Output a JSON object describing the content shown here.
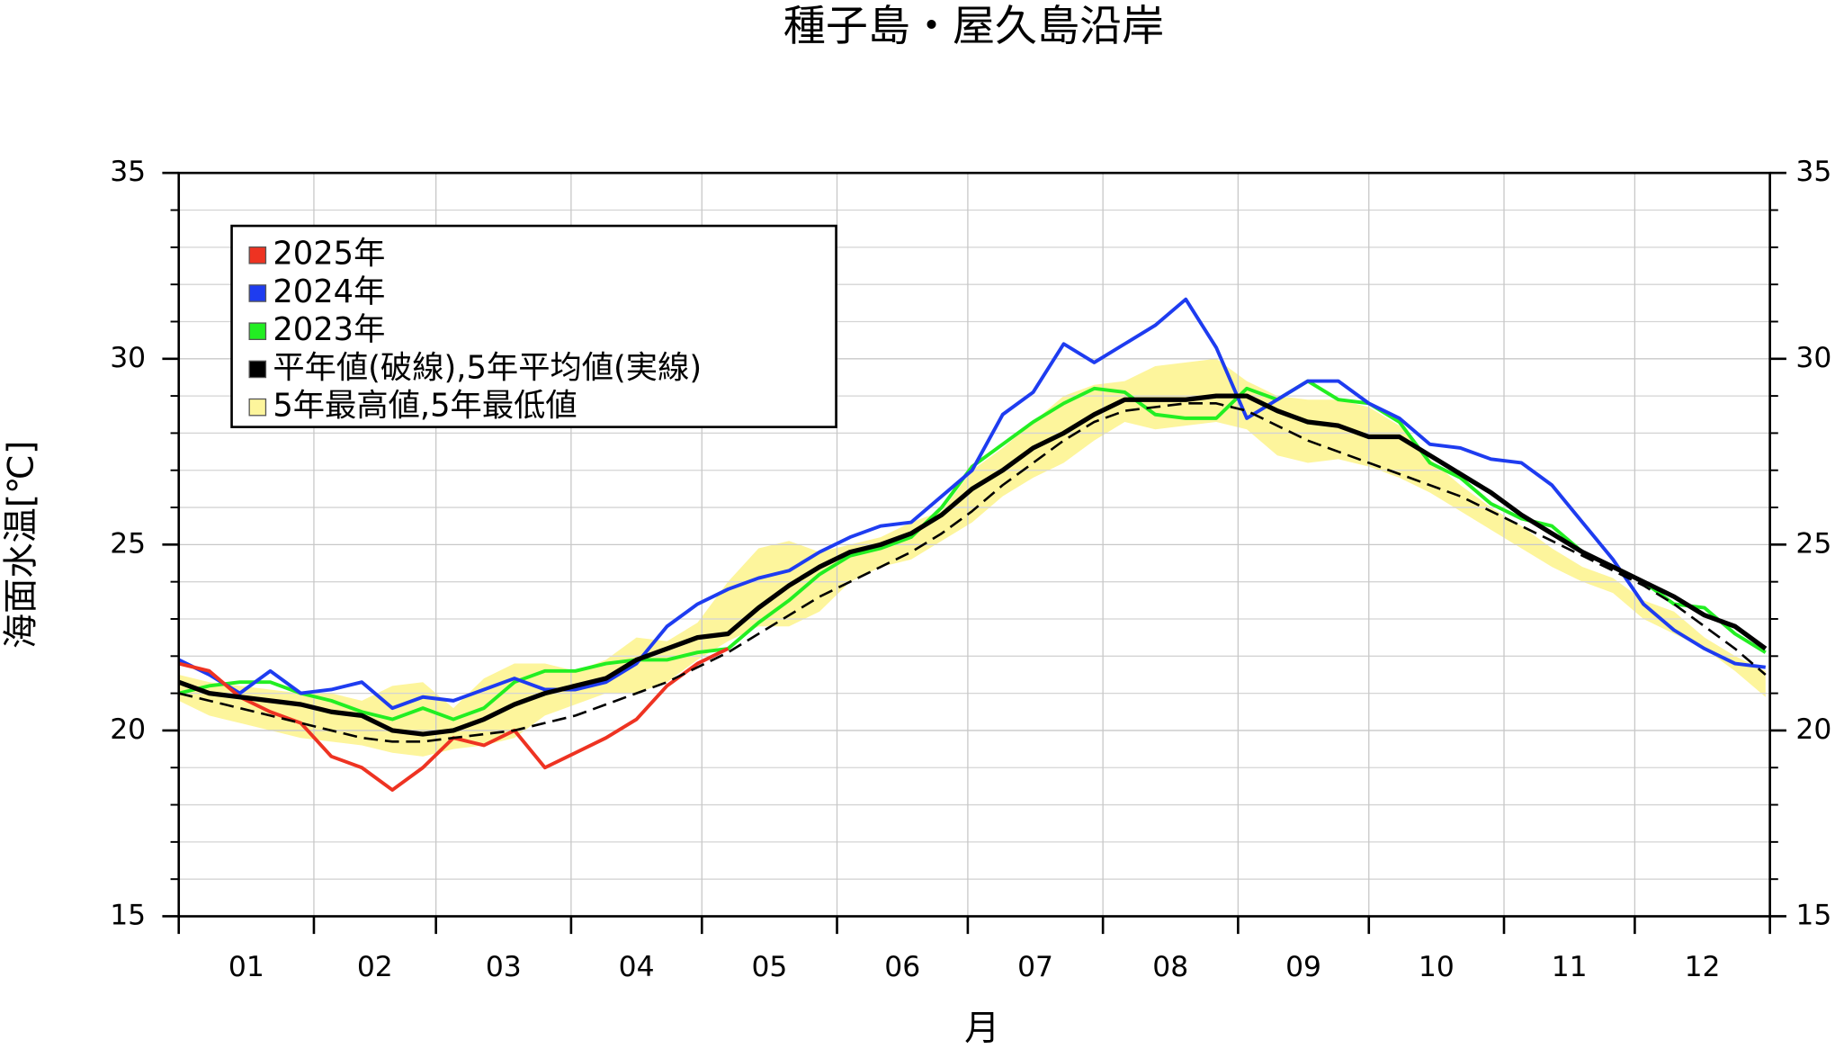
{
  "chart_data": {
    "type": "line",
    "title": "種子島・屋久島沿岸",
    "xlabel": "月",
    "ylabel": "海面水温[℃]",
    "categories": [
      "01",
      "02",
      "03",
      "04",
      "05",
      "06",
      "07",
      "08",
      "09",
      "10",
      "11",
      "12"
    ],
    "xlim": [
      1,
      366
    ],
    "xticks": [
      1,
      32,
      60,
      91,
      121,
      152,
      182,
      213,
      244,
      274,
      305,
      335,
      366
    ],
    "ylim": [
      15,
      35
    ],
    "yticks": [
      15,
      20,
      25,
      30,
      35
    ],
    "yminorticks": [
      16,
      17,
      18,
      19,
      21,
      22,
      23,
      24,
      26,
      27,
      28,
      29,
      31,
      32,
      33,
      34
    ],
    "grid": true,
    "x": [
      1,
      8,
      15,
      22,
      29,
      36,
      43,
      50,
      57,
      64,
      71,
      78,
      85,
      92,
      99,
      106,
      113,
      120,
      127,
      134,
      141,
      148,
      155,
      162,
      169,
      176,
      183,
      190,
      197,
      204,
      211,
      218,
      225,
      232,
      239,
      246,
      253,
      260,
      267,
      274,
      281,
      288,
      295,
      302,
      309,
      316,
      323,
      330,
      337,
      344,
      351,
      358,
      365
    ],
    "band": {
      "name": "5年最高値,5年最低値",
      "color": "#fdf59c",
      "upper": [
        21.5,
        21.3,
        21.2,
        21.1,
        21.0,
        21.0,
        20.8,
        21.2,
        21.3,
        20.6,
        21.4,
        21.8,
        21.8,
        21.6,
        21.9,
        22.5,
        22.4,
        22.9,
        24.0,
        24.9,
        25.1,
        24.8,
        25.0,
        25.2,
        25.6,
        25.9,
        27.0,
        27.6,
        28.3,
        29.0,
        29.3,
        29.4,
        29.8,
        29.9,
        30.0,
        29.4,
        29.0,
        28.9,
        28.9,
        28.7,
        28.2,
        27.3,
        26.6,
        26.0,
        25.5,
        24.9,
        24.4,
        24.1,
        23.5,
        23.2,
        22.5,
        22.0,
        21.6
      ],
      "lower": [
        20.8,
        20.4,
        20.2,
        20.0,
        19.8,
        19.7,
        19.6,
        19.4,
        19.3,
        19.5,
        19.6,
        19.8,
        20.4,
        20.7,
        21.0,
        21.0,
        21.3,
        21.9,
        22.4,
        22.8,
        22.8,
        23.2,
        24.0,
        24.4,
        24.6,
        25.1,
        25.6,
        26.3,
        26.8,
        27.2,
        27.8,
        28.3,
        28.1,
        28.2,
        28.3,
        28.1,
        27.4,
        27.2,
        27.3,
        27.1,
        26.8,
        26.4,
        25.9,
        25.4,
        24.9,
        24.4,
        24.0,
        23.7,
        23.0,
        22.6,
        22.2,
        21.6,
        20.9
      ]
    },
    "series": [
      {
        "name": "2025年",
        "color": "#ee3322",
        "values": [
          21.8,
          21.6,
          20.9,
          20.5,
          20.2,
          19.3,
          19.0,
          18.4,
          19.0,
          19.8,
          19.6,
          20.0,
          19.0,
          19.4,
          19.8,
          20.3,
          21.2,
          21.8,
          22.2,
          null,
          null,
          null,
          null,
          null,
          null,
          null,
          null,
          null,
          null,
          null,
          null,
          null,
          null,
          null,
          null,
          null,
          null,
          null,
          null,
          null,
          null,
          null,
          null,
          null,
          null,
          null,
          null,
          null,
          null,
          null,
          null,
          null,
          null
        ]
      },
      {
        "name": "2024年",
        "color": "#1e3cf0",
        "values": [
          21.9,
          21.5,
          21.0,
          21.6,
          21.0,
          21.1,
          21.3,
          20.6,
          20.9,
          20.8,
          21.1,
          21.4,
          21.1,
          21.1,
          21.3,
          21.8,
          22.8,
          23.4,
          23.8,
          24.1,
          24.3,
          24.8,
          25.2,
          25.5,
          25.6,
          26.3,
          27.0,
          28.5,
          29.1,
          30.4,
          29.9,
          30.4,
          30.9,
          31.6,
          30.3,
          28.4,
          28.9,
          29.4,
          29.4,
          28.8,
          28.4,
          27.7,
          27.6,
          27.3,
          27.2,
          26.6,
          25.6,
          24.6,
          23.4,
          22.7,
          22.2,
          21.8,
          21.7
        ]
      },
      {
        "name": "2023年",
        "color": "#22ee22",
        "values": [
          21.0,
          21.2,
          21.3,
          21.3,
          21.0,
          20.8,
          20.5,
          20.3,
          20.6,
          20.3,
          20.6,
          21.3,
          21.6,
          21.6,
          21.8,
          21.9,
          21.9,
          22.1,
          22.2,
          22.9,
          23.5,
          24.2,
          24.7,
          24.9,
          25.2,
          26.0,
          27.1,
          27.7,
          28.3,
          28.8,
          29.2,
          29.1,
          28.5,
          28.4,
          28.4,
          29.2,
          28.9,
          29.4,
          28.9,
          28.8,
          28.3,
          27.2,
          26.8,
          26.1,
          25.7,
          25.5,
          24.8,
          24.4,
          24.0,
          23.4,
          23.3,
          22.6,
          22.1
        ]
      },
      {
        "name": "平年値(破線),5年平均値(実線)",
        "color": "#000000",
        "values": [
          21.3,
          21.0,
          20.9,
          20.8,
          20.7,
          20.5,
          20.4,
          20.0,
          19.9,
          20.0,
          20.3,
          20.7,
          21.0,
          21.2,
          21.4,
          21.9,
          22.2,
          22.5,
          22.6,
          23.3,
          23.9,
          24.4,
          24.8,
          25.0,
          25.3,
          25.8,
          26.5,
          27.0,
          27.6,
          28.0,
          28.5,
          28.9,
          28.9,
          28.9,
          29.0,
          29.0,
          28.6,
          28.3,
          28.2,
          27.9,
          27.9,
          27.4,
          26.9,
          26.4,
          25.8,
          25.3,
          24.8,
          24.4,
          24.0,
          23.6,
          23.1,
          22.8,
          22.2
        ],
        "normal_values": [
          21.0,
          20.8,
          20.6,
          20.4,
          20.2,
          20.0,
          19.8,
          19.7,
          19.7,
          19.8,
          19.9,
          20.0,
          20.2,
          20.4,
          20.7,
          21.0,
          21.3,
          21.7,
          22.1,
          22.6,
          23.1,
          23.6,
          24.0,
          24.4,
          24.8,
          25.3,
          25.9,
          26.6,
          27.2,
          27.8,
          28.3,
          28.6,
          28.7,
          28.8,
          28.8,
          28.6,
          28.2,
          27.8,
          27.5,
          27.2,
          26.9,
          26.6,
          26.3,
          25.9,
          25.5,
          25.1,
          24.7,
          24.3,
          23.9,
          23.4,
          22.8,
          22.2,
          21.5
        ]
      }
    ]
  }
}
